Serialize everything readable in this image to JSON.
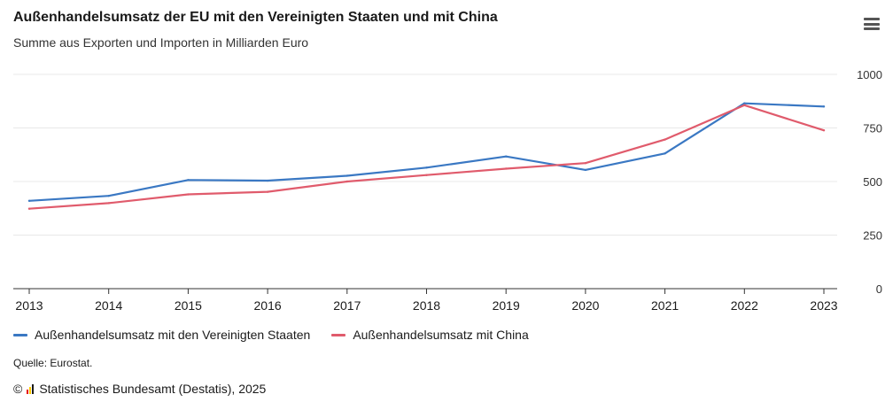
{
  "header": {
    "title": "Außenhandelsumsatz der EU mit den Vereinigten Staaten und mit China",
    "subtitle": "Summe aus Exporten und Importen in Milliarden Euro"
  },
  "menu": {
    "icon": "hamburger-menu-icon"
  },
  "footer": {
    "source": "Quelle: Eurostat.",
    "copyright_symbol": "©",
    "copyright_text": "Statistisches Bundesamt (Destatis), 2025",
    "logo_colors": [
      "#e60000",
      "#ffcc00",
      "#1a1a1a"
    ]
  },
  "chart_data": {
    "type": "line",
    "title": "Außenhandelsumsatz der EU mit den Vereinigten Staaten und mit China",
    "subtitle": "Summe aus Exporten und Importen in Milliarden Euro",
    "x": [
      "2013",
      "2014",
      "2015",
      "2016",
      "2017",
      "2018",
      "2019",
      "2020",
      "2021",
      "2022",
      "2023"
    ],
    "ylim": [
      0,
      1000
    ],
    "yticks": [
      0,
      250,
      500,
      750,
      1000
    ],
    "y_axis_side": "right",
    "grid": true,
    "legend_position": "bottom-left",
    "series": [
      {
        "name": "Außenhandelsumsatz mit den Vereinigten Staaten",
        "color": "#3a78c3",
        "values": [
          410,
          433,
          507,
          504,
          527,
          565,
          617,
          554,
          631,
          865,
          850
        ]
      },
      {
        "name": "Außenhandelsumsatz mit China",
        "color": "#e05b6c",
        "values": [
          373,
          399,
          440,
          452,
          500,
          530,
          560,
          586,
          696,
          856,
          739
        ]
      }
    ]
  }
}
